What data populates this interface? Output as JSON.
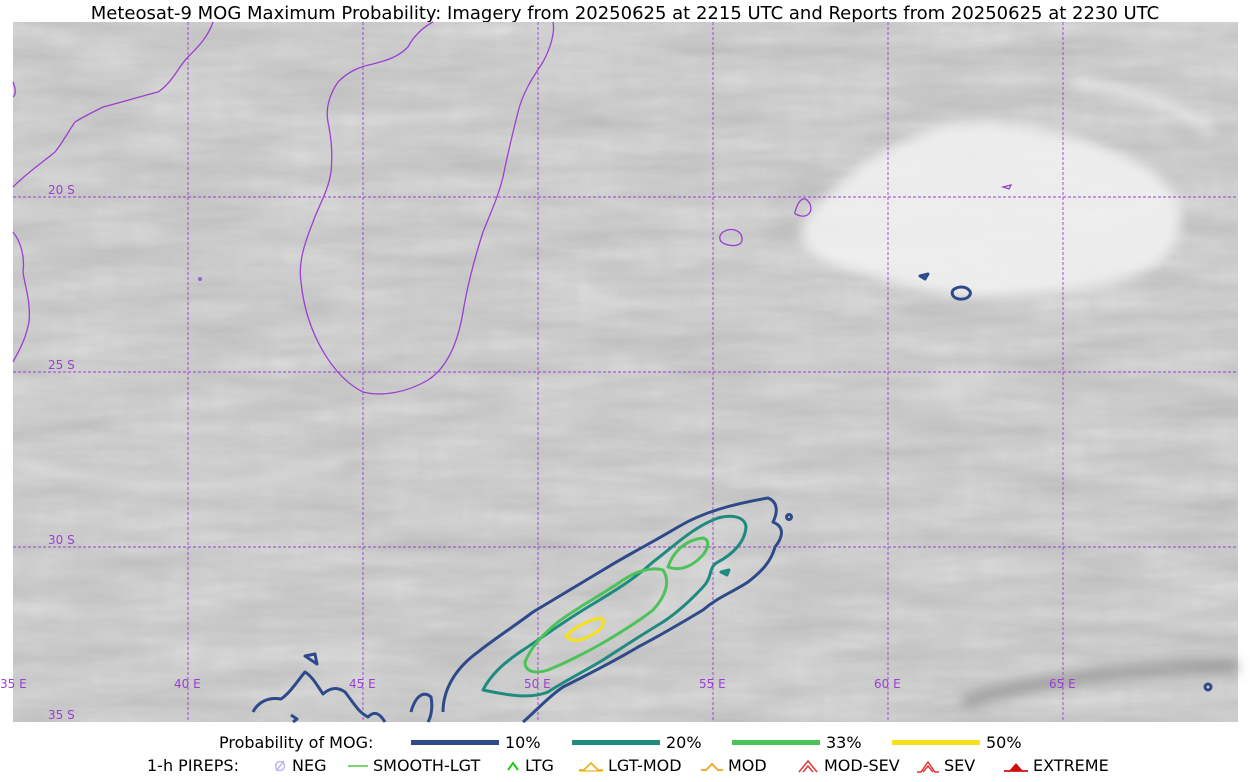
{
  "title": "Meteosat-9 MOG Maximum Probability: Imagery from 20250625 at 2215 UTC and Reports from 20250625 at 2230 UTC",
  "map": {
    "latitude_labels": [
      "20 S",
      "25 S",
      "30 S",
      "35 S"
    ],
    "longitude_labels": [
      "35 E",
      "40 E",
      "45 E",
      "50 E",
      "55 E",
      "60 E",
      "65 E"
    ],
    "grid_color": "#9b3fd1",
    "coastline_color": "#9b3fd1"
  },
  "legend": {
    "probability_title": "Probability of MOG:",
    "probability_levels": [
      {
        "label": "10%",
        "color": "#2e4a8a"
      },
      {
        "label": "20%",
        "color": "#1f8a80"
      },
      {
        "label": "33%",
        "color": "#4cc35a"
      },
      {
        "label": "50%",
        "color": "#f5e11a"
      }
    ],
    "pireps_title": "1-h PIREPS:",
    "pireps": [
      {
        "label": "NEG",
        "icon": "neg-icon",
        "color": "#b8b8f0"
      },
      {
        "label": "SMOOTH-LGT",
        "icon": "smooth-lgt-icon",
        "color": "#44cc44"
      },
      {
        "label": "LTG",
        "icon": "ltg-icon",
        "color": "#22cc22"
      },
      {
        "label": "LGT-MOD",
        "icon": "lgt-mod-icon",
        "color": "#f0b020"
      },
      {
        "label": "MOD",
        "icon": "mod-icon",
        "color": "#f0a020"
      },
      {
        "label": "MOD-SEV",
        "icon": "mod-sev-icon",
        "color": "#e03030"
      },
      {
        "label": "SEV",
        "icon": "sev-icon",
        "color": "#e03030"
      },
      {
        "label": "EXTREME",
        "icon": "extreme-icon",
        "color": "#d01010"
      }
    ]
  }
}
